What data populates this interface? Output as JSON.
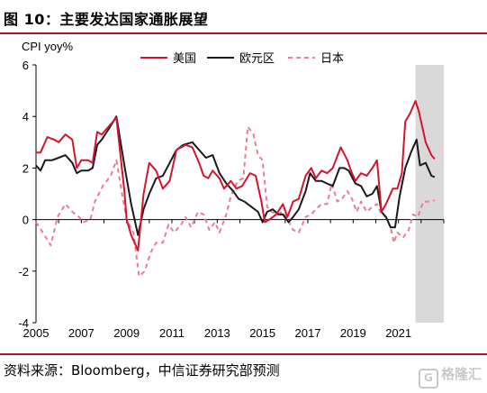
{
  "header": {
    "title": "图 10：主要发达国家通胀展望"
  },
  "footer": {
    "source": "资料来源：Bloomberg，中信证券研究部预测",
    "watermark": "格隆汇"
  },
  "colors": {
    "us": "#d4142c",
    "eu": "#1a1a1a",
    "jp": "#f07a94",
    "forecast_band": "#d9d9d9",
    "rule": "#b8102a"
  },
  "chart_data": {
    "type": "line",
    "title": "",
    "ylabel": "CPI yoy%",
    "xlabel": "",
    "xlim": [
      2005.0,
      2023.0
    ],
    "ylim": [
      -4,
      6
    ],
    "yticks": [
      "6",
      "4",
      "2",
      "0",
      "-2",
      "-4"
    ],
    "xticks": [
      "2005",
      "2007",
      "2009",
      "2011",
      "2013",
      "2015",
      "2017",
      "2019",
      "2021"
    ],
    "grid": false,
    "legend_position": "top",
    "forecast_shading": {
      "from": 2021.75,
      "to": 2023.0
    },
    "series": [
      {
        "name": "美国",
        "style": "solid",
        "points": [
          [
            2005.0,
            2.6
          ],
          [
            2005.2,
            2.6
          ],
          [
            2005.5,
            3.2
          ],
          [
            2005.8,
            3.1
          ],
          [
            2006.0,
            3.0
          ],
          [
            2006.3,
            3.3
          ],
          [
            2006.6,
            3.1
          ],
          [
            2006.8,
            2.0
          ],
          [
            2007.0,
            2.3
          ],
          [
            2007.3,
            2.3
          ],
          [
            2007.5,
            2.2
          ],
          [
            2007.7,
            3.4
          ],
          [
            2007.9,
            3.3
          ],
          [
            2008.2,
            3.6
          ],
          [
            2008.55,
            3.95
          ],
          [
            2008.9,
            1.1
          ],
          [
            2009.0,
            0.0
          ],
          [
            2009.2,
            -0.6
          ],
          [
            2009.5,
            -1.2
          ],
          [
            2009.75,
            1.0
          ],
          [
            2010.0,
            2.2
          ],
          [
            2010.3,
            1.9
          ],
          [
            2010.6,
            1.2
          ],
          [
            2010.9,
            1.5
          ],
          [
            2011.2,
            2.7
          ],
          [
            2011.6,
            2.9
          ],
          [
            2011.9,
            2.8
          ],
          [
            2012.2,
            2.2
          ],
          [
            2012.4,
            1.7
          ],
          [
            2012.6,
            1.6
          ],
          [
            2012.8,
            1.9
          ],
          [
            2013.1,
            1.6
          ],
          [
            2013.3,
            1.2
          ],
          [
            2013.6,
            1.5
          ],
          [
            2013.85,
            1.2
          ],
          [
            2014.1,
            1.3
          ],
          [
            2014.45,
            1.8
          ],
          [
            2014.7,
            1.7
          ],
          [
            2014.95,
            0.7
          ],
          [
            2015.1,
            -0.1
          ],
          [
            2015.3,
            0.0
          ],
          [
            2015.6,
            0.2
          ],
          [
            2015.9,
            0.6
          ],
          [
            2016.1,
            0.1
          ],
          [
            2016.35,
            0.7
          ],
          [
            2016.6,
            0.8
          ],
          [
            2016.9,
            1.7
          ],
          [
            2017.15,
            2.0
          ],
          [
            2017.35,
            1.6
          ],
          [
            2017.6,
            1.9
          ],
          [
            2017.85,
            1.8
          ],
          [
            2018.1,
            2.0
          ],
          [
            2018.45,
            2.8
          ],
          [
            2018.75,
            2.3
          ],
          [
            2018.9,
            1.9
          ],
          [
            2019.1,
            1.5
          ],
          [
            2019.35,
            1.8
          ],
          [
            2019.6,
            1.7
          ],
          [
            2019.85,
            2.0
          ],
          [
            2020.05,
            2.3
          ],
          [
            2020.25,
            0.3
          ],
          [
            2020.45,
            0.6
          ],
          [
            2020.75,
            1.2
          ],
          [
            2020.95,
            1.2
          ],
          [
            2021.15,
            1.8
          ],
          [
            2021.3,
            3.8
          ],
          [
            2021.5,
            4.1
          ],
          [
            2021.75,
            4.6
          ],
          [
            2021.9,
            4.2
          ],
          [
            2022.2,
            3.0
          ],
          [
            2022.45,
            2.5
          ],
          [
            2022.6,
            2.35
          ]
        ]
      },
      {
        "name": "欧元区",
        "style": "solid",
        "points": [
          [
            2005.0,
            2.1
          ],
          [
            2005.2,
            1.9
          ],
          [
            2005.4,
            2.3
          ],
          [
            2005.7,
            2.3
          ],
          [
            2006.0,
            2.4
          ],
          [
            2006.3,
            2.5
          ],
          [
            2006.6,
            2.2
          ],
          [
            2006.8,
            1.8
          ],
          [
            2007.0,
            1.9
          ],
          [
            2007.3,
            1.9
          ],
          [
            2007.5,
            2.0
          ],
          [
            2007.7,
            2.9
          ],
          [
            2007.9,
            3.1
          ],
          [
            2008.2,
            3.5
          ],
          [
            2008.55,
            4.0
          ],
          [
            2008.9,
            2.1
          ],
          [
            2009.2,
            0.6
          ],
          [
            2009.5,
            -0.6
          ],
          [
            2009.75,
            0.4
          ],
          [
            2010.0,
            1.0
          ],
          [
            2010.3,
            1.6
          ],
          [
            2010.6,
            1.7
          ],
          [
            2010.9,
            2.2
          ],
          [
            2011.2,
            2.7
          ],
          [
            2011.5,
            2.9
          ],
          [
            2011.9,
            3.0
          ],
          [
            2012.2,
            2.7
          ],
          [
            2012.5,
            2.4
          ],
          [
            2012.8,
            2.5
          ],
          [
            2013.1,
            1.8
          ],
          [
            2013.4,
            1.4
          ],
          [
            2013.7,
            1.1
          ],
          [
            2013.95,
            0.8
          ],
          [
            2014.2,
            0.7
          ],
          [
            2014.5,
            0.5
          ],
          [
            2014.8,
            0.3
          ],
          [
            2015.0,
            -0.1
          ],
          [
            2015.2,
            0.3
          ],
          [
            2015.45,
            0.4
          ],
          [
            2015.7,
            0.2
          ],
          [
            2015.9,
            0.2
          ],
          [
            2016.15,
            -0.1
          ],
          [
            2016.35,
            0.1
          ],
          [
            2016.6,
            0.4
          ],
          [
            2016.9,
            1.1
          ],
          [
            2017.1,
            1.8
          ],
          [
            2017.35,
            1.5
          ],
          [
            2017.6,
            1.5
          ],
          [
            2017.85,
            1.4
          ],
          [
            2018.1,
            1.3
          ],
          [
            2018.4,
            2.0
          ],
          [
            2018.6,
            2.0
          ],
          [
            2018.8,
            1.9
          ],
          [
            2019.1,
            1.4
          ],
          [
            2019.35,
            1.3
          ],
          [
            2019.6,
            0.9
          ],
          [
            2019.85,
            1.0
          ],
          [
            2020.05,
            1.3
          ],
          [
            2020.25,
            0.3
          ],
          [
            2020.45,
            0.1
          ],
          [
            2020.65,
            -0.3
          ],
          [
            2020.85,
            -0.3
          ],
          [
            2021.05,
            0.9
          ],
          [
            2021.3,
            2.0
          ],
          [
            2021.55,
            2.6
          ],
          [
            2021.8,
            3.1
          ],
          [
            2021.95,
            2.1
          ],
          [
            2022.2,
            2.2
          ],
          [
            2022.45,
            1.7
          ],
          [
            2022.6,
            1.65
          ]
        ]
      },
      {
        "name": "日本",
        "style": "dashed",
        "points": [
          [
            2005.0,
            -0.1
          ],
          [
            2005.3,
            -0.5
          ],
          [
            2005.65,
            -1.0
          ],
          [
            2005.95,
            0.1
          ],
          [
            2006.3,
            0.6
          ],
          [
            2006.6,
            0.3
          ],
          [
            2006.9,
            0.1
          ],
          [
            2007.1,
            -0.1
          ],
          [
            2007.4,
            0.0
          ],
          [
            2007.6,
            0.7
          ],
          [
            2007.95,
            1.3
          ],
          [
            2008.3,
            1.7
          ],
          [
            2008.55,
            2.3
          ],
          [
            2008.8,
            1.0
          ],
          [
            2009.0,
            0.0
          ],
          [
            2009.3,
            -0.5
          ],
          [
            2009.55,
            -2.2
          ],
          [
            2009.8,
            -2.0
          ],
          [
            2010.05,
            -1.3
          ],
          [
            2010.3,
            -0.9
          ],
          [
            2010.6,
            -0.9
          ],
          [
            2010.85,
            -0.2
          ],
          [
            2011.1,
            -0.5
          ],
          [
            2011.4,
            -0.2
          ],
          [
            2011.6,
            0.1
          ],
          [
            2011.85,
            -0.3
          ],
          [
            2012.15,
            0.3
          ],
          [
            2012.4,
            0.2
          ],
          [
            2012.65,
            -0.4
          ],
          [
            2012.9,
            -0.1
          ],
          [
            2013.1,
            -0.5
          ],
          [
            2013.4,
            0.2
          ],
          [
            2013.6,
            0.9
          ],
          [
            2013.9,
            1.5
          ],
          [
            2014.15,
            1.6
          ],
          [
            2014.35,
            3.6
          ],
          [
            2014.6,
            3.3
          ],
          [
            2014.8,
            2.5
          ],
          [
            2015.0,
            2.3
          ],
          [
            2015.2,
            0.5
          ],
          [
            2015.4,
            0.3
          ],
          [
            2015.65,
            0.2
          ],
          [
            2015.9,
            0.3
          ],
          [
            2016.1,
            0.0
          ],
          [
            2016.35,
            -0.4
          ],
          [
            2016.6,
            -0.5
          ],
          [
            2016.9,
            0.1
          ],
          [
            2017.15,
            0.2
          ],
          [
            2017.35,
            0.4
          ],
          [
            2017.6,
            0.6
          ],
          [
            2017.85,
            0.6
          ],
          [
            2018.05,
            1.4
          ],
          [
            2018.3,
            0.7
          ],
          [
            2018.5,
            0.8
          ],
          [
            2018.75,
            1.1
          ],
          [
            2018.95,
            0.8
          ],
          [
            2019.15,
            0.3
          ],
          [
            2019.35,
            0.7
          ],
          [
            2019.6,
            0.3
          ],
          [
            2019.85,
            0.5
          ],
          [
            2020.05,
            0.6
          ],
          [
            2020.25,
            0.2
          ],
          [
            2020.45,
            0.1
          ],
          [
            2020.65,
            -0.3
          ],
          [
            2020.8,
            -0.9
          ],
          [
            2020.95,
            -0.5
          ],
          [
            2021.2,
            -0.7
          ],
          [
            2021.45,
            -0.4
          ],
          [
            2021.65,
            0.2
          ],
          [
            2021.85,
            0.1
          ],
          [
            2022.1,
            0.7
          ],
          [
            2022.4,
            0.7
          ],
          [
            2022.6,
            0.75
          ]
        ]
      }
    ]
  }
}
